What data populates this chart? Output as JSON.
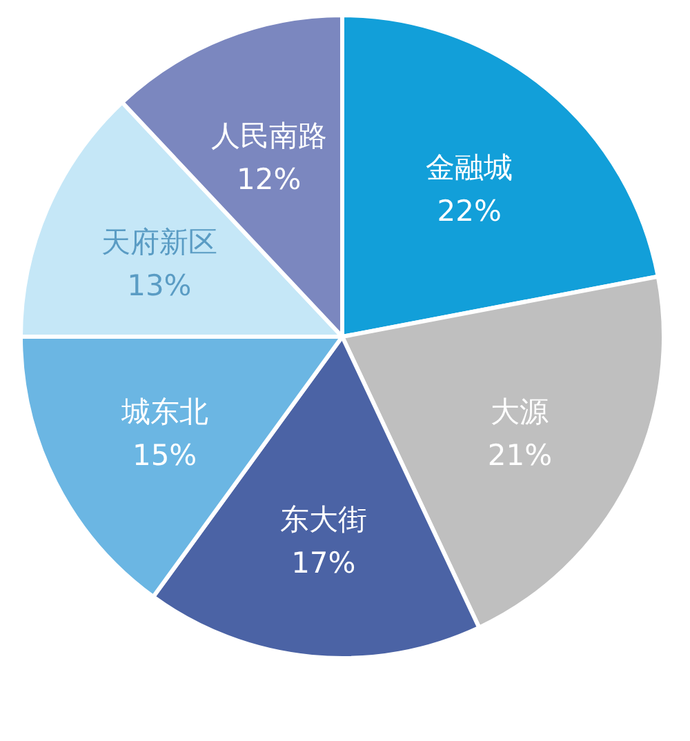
{
  "chart_data": {
    "type": "pie",
    "categories": [
      "金融城",
      "大源",
      "东大街",
      "城东北",
      "天府新区",
      "人民南路"
    ],
    "values": [
      22,
      21,
      17,
      15,
      13,
      12
    ],
    "colors": [
      "#129fd9",
      "#bfbfbf",
      "#4b63a5",
      "#6bb6e3",
      "#c5e7f7",
      "#7b87bf"
    ],
    "value_labels": [
      "22%",
      "21%",
      "17%",
      "15%",
      "13%",
      "12%"
    ]
  }
}
